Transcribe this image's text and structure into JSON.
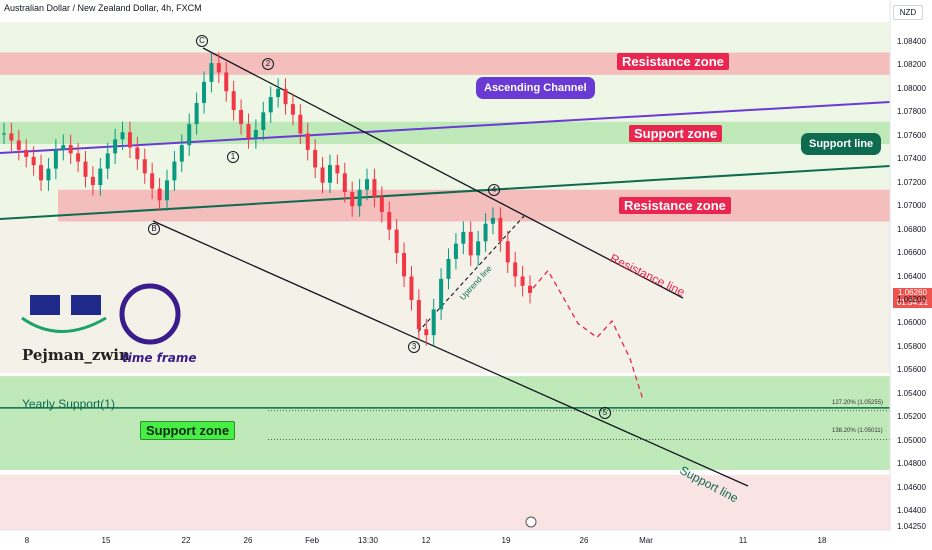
{
  "header": {
    "title": "Australian Dollar / New Zealand Dollar, 4h, FXCM"
  },
  "currency": "NZD",
  "last_price": {
    "price": "1.06260",
    "countdown": "01:34:21"
  },
  "branding": {
    "name": "Pejman_zwin",
    "timeframe_badge": "4",
    "timeframe_badge_text": "HOURS",
    "timeframe_label": "time frame"
  },
  "annotations": {
    "resistance_zone_top": "Resistance zone",
    "support_zone_mid": "Support zone",
    "resistance_zone_mid": "Resistance zone",
    "support_zone_bottom": "Support zone",
    "ascending_channel": "Ascending Channel",
    "support_line_callout": "Support line",
    "resistance_line": "Resistance line",
    "support_line_bottom": "Support line",
    "uptrend_line": "Uptrend line",
    "yearly_support": "Yearly Support(1)",
    "fib_127": "127.20% (1.05255)",
    "fib_138": "138.20% (1.05011)"
  },
  "waves": [
    "C",
    "2",
    "1",
    "B",
    "4",
    "3",
    "5"
  ],
  "colors": {
    "bullish": "#089981",
    "bearish": "#f23645",
    "resistance_fill": "#f3b4b4",
    "support_fill": "#b9e7b3",
    "channel": "#6a3bd4",
    "support_line": "#0f6b4f",
    "forecast": "#e8264f"
  },
  "chart_data": {
    "type": "candlestick",
    "instrument": "AUD/NZD",
    "timeframe": "4h",
    "y_axis": {
      "ticks": [
        "1.08400",
        "1.08200",
        "1.08000",
        "1.07800",
        "1.07600",
        "1.07400",
        "1.07200",
        "1.07000",
        "1.06800",
        "1.06600",
        "1.06400",
        "1.06200",
        "1.06000",
        "1.05800",
        "1.05600",
        "1.05400",
        "1.05200",
        "1.05000",
        "1.04800",
        "1.04600",
        "1.04400",
        "1.04250"
      ],
      "range": [
        1.0425,
        1.0855
      ]
    },
    "x_axis": {
      "ticks": [
        "8",
        "15",
        "22",
        "26",
        "Feb",
        "13:30",
        "12",
        "19",
        "26",
        "Mar",
        "11",
        "18"
      ]
    },
    "zones": [
      {
        "kind": "resistance",
        "low": 1.0812,
        "high": 1.0831
      },
      {
        "kind": "support",
        "low": 1.0753,
        "high": 1.0772
      },
      {
        "kind": "resistance",
        "low": 1.0687,
        "high": 1.0714
      },
      {
        "kind": "support",
        "low": 1.0475,
        "high": 1.0555
      }
    ],
    "levels": [
      {
        "name": "Yearly Support(1)",
        "value": 1.0528
      },
      {
        "name": "127.20%",
        "value": 1.05255
      },
      {
        "name": "138.20%",
        "value": 1.05011
      }
    ],
    "price_path": [
      1.0762,
      1.0756,
      1.0748,
      1.0742,
      1.0735,
      1.0722,
      1.0732,
      1.0748,
      1.0752,
      1.0745,
      1.0738,
      1.0725,
      1.0718,
      1.0732,
      1.0745,
      1.0757,
      1.0763,
      1.075,
      1.074,
      1.0728,
      1.0715,
      1.0705,
      1.0722,
      1.0738,
      1.0752,
      1.077,
      1.0788,
      1.0806,
      1.0822,
      1.0814,
      1.0798,
      1.0782,
      1.077,
      1.0758,
      1.0765,
      1.078,
      1.0793,
      1.08,
      1.0787,
      1.0778,
      1.0762,
      1.0748,
      1.0733,
      1.072,
      1.0735,
      1.0728,
      1.0712,
      1.07,
      1.0714,
      1.0723,
      1.0708,
      1.0695,
      1.068,
      1.066,
      1.064,
      1.062,
      1.0595,
      1.059,
      1.0612,
      1.0638,
      1.0655,
      1.0668,
      1.0678,
      1.0658,
      1.067,
      1.0685,
      1.069,
      1.067,
      1.0652,
      1.064,
      1.0632,
      1.0626
    ],
    "forecast_path": [
      1.063,
      1.0645,
      1.06,
      1.0588,
      1.0602,
      1.057,
      1.0535
    ]
  }
}
